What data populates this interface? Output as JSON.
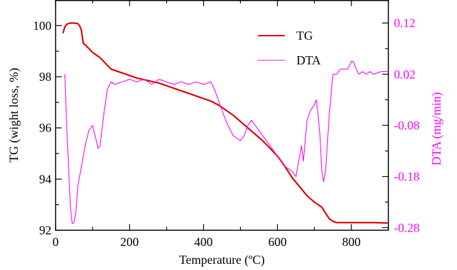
{
  "chart_data": {
    "type": "line",
    "xlabel": "Temperature (ºC)",
    "ylabel_left": "TG (wight loss, %)",
    "ylabel_right": "DTA (mg/min)",
    "xlim": [
      0,
      900
    ],
    "ylim_left": [
      92,
      101
    ],
    "ylim_right": [
      -0.285,
      0.165
    ],
    "x_ticks": [
      0,
      200,
      400,
      600,
      800
    ],
    "y_ticks_left": [
      92,
      94,
      96,
      98,
      100
    ],
    "y_ticks_right": [
      -0.28,
      -0.18,
      -0.08,
      0.02,
      0.12
    ],
    "y_ticks_right_labels": [
      "-0.28",
      "-0.18",
      "-0.08",
      "0.02",
      "0.12"
    ],
    "grid": false,
    "legend_position": "top-right",
    "colors": {
      "tg": "#e00000",
      "dta": "#ff00ff",
      "axis": "#000000"
    },
    "series": [
      {
        "name": "TG",
        "axis": "left",
        "x": [
          20,
          25,
          30,
          35,
          40,
          50,
          60,
          65,
          70,
          75,
          80,
          90,
          100,
          110,
          120,
          130,
          140,
          150,
          160,
          180,
          200,
          220,
          250,
          280,
          300,
          330,
          360,
          390,
          420,
          440,
          460,
          480,
          500,
          520,
          540,
          560,
          580,
          600,
          620,
          640,
          660,
          680,
          700,
          720,
          740,
          750,
          760,
          780,
          800,
          830,
          860,
          900
        ],
        "y": [
          99.7,
          99.95,
          100.05,
          100.08,
          100.1,
          100.1,
          100.08,
          100.0,
          99.8,
          99.3,
          99.25,
          99.1,
          98.95,
          98.85,
          98.75,
          98.6,
          98.45,
          98.3,
          98.25,
          98.15,
          98.05,
          97.95,
          97.85,
          97.75,
          97.65,
          97.5,
          97.35,
          97.2,
          97.05,
          96.9,
          96.7,
          96.5,
          96.25,
          96.0,
          95.75,
          95.5,
          95.2,
          94.9,
          94.5,
          94.05,
          93.7,
          93.35,
          93.1,
          92.9,
          92.45,
          92.35,
          92.3,
          92.3,
          92.3,
          92.3,
          92.3,
          92.28
        ]
      },
      {
        "name": "DTA",
        "axis": "right",
        "x": [
          25,
          30,
          35,
          40,
          45,
          50,
          55,
          60,
          70,
          80,
          90,
          100,
          110,
          115,
          120,
          130,
          140,
          150,
          160,
          180,
          200,
          220,
          240,
          260,
          280,
          300,
          320,
          340,
          360,
          380,
          400,
          420,
          430,
          440,
          460,
          480,
          500,
          510,
          520,
          530,
          540,
          560,
          580,
          600,
          620,
          640,
          650,
          660,
          665,
          670,
          680,
          690,
          700,
          705,
          710,
          715,
          720,
          725,
          730,
          740,
          750,
          760,
          770,
          780,
          790,
          800,
          805,
          810,
          820,
          830,
          840,
          850,
          860,
          880,
          900
        ],
        "y": [
          0.02,
          -0.08,
          -0.16,
          -0.24,
          -0.272,
          -0.27,
          -0.25,
          -0.2,
          -0.16,
          -0.12,
          -0.09,
          -0.08,
          -0.11,
          -0.125,
          -0.12,
          -0.06,
          -0.01,
          0.005,
          0.0,
          0.005,
          0.01,
          0.005,
          0.01,
          0.0,
          0.01,
          0.005,
          0.0,
          0.005,
          0.0,
          0.005,
          0.0,
          0.005,
          -0.01,
          -0.03,
          -0.07,
          -0.1,
          -0.11,
          -0.1,
          -0.08,
          -0.07,
          -0.08,
          -0.1,
          -0.12,
          -0.14,
          -0.16,
          -0.17,
          -0.18,
          -0.14,
          -0.12,
          -0.15,
          -0.07,
          -0.05,
          -0.04,
          -0.03,
          -0.06,
          -0.1,
          -0.17,
          -0.19,
          -0.17,
          -0.06,
          0.02,
          0.02,
          0.03,
          0.03,
          0.03,
          0.045,
          0.045,
          0.035,
          0.02,
          0.025,
          0.02,
          0.025,
          0.02,
          0.025,
          0.025
        ]
      }
    ]
  }
}
